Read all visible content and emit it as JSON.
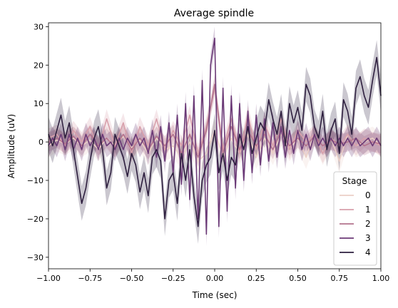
{
  "chart_data": {
    "type": "line",
    "title": "Average spindle",
    "xlabel": "Time (sec)",
    "ylabel": "Amplitude (uV)",
    "xlim": [
      -1.0,
      1.0
    ],
    "ylim": [
      -33,
      31
    ],
    "xticks": [
      -1.0,
      -0.75,
      -0.5,
      -0.25,
      0.0,
      0.25,
      0.5,
      0.75,
      1.0
    ],
    "xtick_labels": [
      "−1.00",
      "−0.75",
      "−0.50",
      "−0.25",
      "0.00",
      "0.25",
      "0.50",
      "0.75",
      "1.00"
    ],
    "yticks": [
      -30,
      -20,
      -10,
      0,
      10,
      20,
      30
    ],
    "ytick_labels": [
      "−30",
      "−20",
      "−10",
      "0",
      "10",
      "20",
      "30"
    ],
    "grid": false,
    "legend": {
      "title": "Stage",
      "position": "lower-right"
    },
    "band_note_hidden": true,
    "series": [
      {
        "name": "0",
        "color": "#ebcfc6",
        "band": 3.0,
        "x": [
          -1.0,
          -0.95,
          -0.9,
          -0.85,
          -0.8,
          -0.75,
          -0.7,
          -0.65,
          -0.6,
          -0.55,
          -0.5,
          -0.45,
          -0.4,
          -0.35,
          -0.3,
          -0.25,
          -0.2,
          -0.15,
          -0.1,
          -0.05,
          0.0,
          0.05,
          0.1,
          0.15,
          0.2,
          0.25,
          0.3,
          0.35,
          0.4,
          0.45,
          0.5,
          0.55,
          0.6,
          0.65,
          0.7,
          0.75,
          0.8,
          0.85,
          0.9,
          0.95,
          1.0
        ],
        "y": [
          -1,
          0.5,
          -0.5,
          1,
          -1,
          0.5,
          -2,
          1,
          -1,
          1.5,
          -1.5,
          0.5,
          -3,
          1,
          -2,
          -1,
          -4,
          0,
          -5,
          -3,
          3,
          -4,
          1,
          -3,
          2,
          -4,
          1,
          -3,
          2,
          -2,
          1,
          -4,
          2,
          -3,
          1,
          -5,
          2,
          -1,
          0,
          1,
          -1
        ]
      },
      {
        "name": "1",
        "color": "#d8a0ab",
        "band": 2.5,
        "x": [
          -1.0,
          -0.95,
          -0.9,
          -0.85,
          -0.8,
          -0.75,
          -0.7,
          -0.65,
          -0.6,
          -0.55,
          -0.5,
          -0.45,
          -0.4,
          -0.35,
          -0.3,
          -0.25,
          -0.2,
          -0.15,
          -0.1,
          -0.05,
          0.0,
          0.05,
          0.1,
          0.15,
          0.2,
          0.25,
          0.3,
          0.35,
          0.4,
          0.45,
          0.5,
          0.55,
          0.6,
          0.65,
          0.7,
          0.75,
          0.8,
          0.85,
          0.9,
          0.95,
          1.0
        ],
        "y": [
          1,
          2,
          -1,
          3,
          0,
          4,
          -2,
          6,
          -1,
          5,
          -3,
          4,
          -1,
          6,
          -2,
          3,
          -1,
          7,
          -3,
          4,
          14,
          -2,
          6,
          -3,
          7,
          -2,
          5,
          -1,
          6,
          -2,
          3,
          0,
          2,
          -3,
          1,
          -1,
          2,
          -1,
          1,
          0,
          -1
        ]
      },
      {
        "name": "2",
        "color": "#b3738d",
        "band": 2.5,
        "x": [
          -1.0,
          -0.95,
          -0.9,
          -0.85,
          -0.8,
          -0.75,
          -0.7,
          -0.65,
          -0.6,
          -0.55,
          -0.5,
          -0.45,
          -0.4,
          -0.35,
          -0.3,
          -0.25,
          -0.2,
          -0.15,
          -0.1,
          -0.05,
          0.0,
          0.05,
          0.1,
          0.15,
          0.2,
          0.25,
          0.3,
          0.35,
          0.4,
          0.45,
          0.5,
          0.55,
          0.6,
          0.65,
          0.7,
          0.75,
          0.8,
          0.85,
          0.9,
          0.95,
          1.0
        ],
        "y": [
          0,
          1,
          -0.5,
          1.5,
          -1,
          2,
          -1,
          1,
          -1.5,
          2,
          -2,
          1,
          -2,
          1.5,
          -1,
          2,
          -3,
          2,
          -4,
          3,
          15,
          -3,
          4,
          -2,
          3,
          -1,
          2,
          -2,
          3,
          -1,
          1,
          -1,
          1.5,
          -1,
          0.5,
          -0.5,
          0,
          1,
          -1,
          0,
          -0.5
        ]
      },
      {
        "name": "3",
        "color": "#6b3a77",
        "band": 3.0,
        "x": [
          -1.0,
          -0.975,
          -0.95,
          -0.925,
          -0.9,
          -0.875,
          -0.85,
          -0.825,
          -0.8,
          -0.775,
          -0.75,
          -0.725,
          -0.7,
          -0.675,
          -0.65,
          -0.625,
          -0.6,
          -0.575,
          -0.55,
          -0.525,
          -0.5,
          -0.475,
          -0.45,
          -0.425,
          -0.4,
          -0.375,
          -0.35,
          -0.325,
          -0.3,
          -0.275,
          -0.25,
          -0.225,
          -0.2,
          -0.175,
          -0.15,
          -0.125,
          -0.1,
          -0.075,
          -0.05,
          -0.025,
          0.0,
          0.025,
          0.05,
          0.075,
          0.1,
          0.125,
          0.15,
          0.175,
          0.2,
          0.225,
          0.25,
          0.275,
          0.3,
          0.325,
          0.35,
          0.375,
          0.4,
          0.425,
          0.45,
          0.475,
          0.5,
          0.525,
          0.55,
          0.575,
          0.6,
          0.625,
          0.65,
          0.675,
          0.7,
          0.725,
          0.75,
          0.775,
          0.8,
          0.825,
          0.85,
          0.875,
          0.9,
          0.925,
          0.95,
          0.975,
          1.0
        ],
        "y": [
          -1,
          1,
          -1,
          2,
          -2,
          2,
          -2,
          1,
          -2,
          2,
          -1,
          1,
          -2,
          2,
          -1,
          0,
          -2,
          1,
          -2,
          1,
          -1,
          2,
          -1,
          1,
          -3,
          3,
          -4,
          4,
          -5,
          5,
          -8,
          7,
          -11,
          10,
          -15,
          12,
          -20,
          16,
          -24,
          20,
          27,
          -22,
          14,
          -18,
          12,
          -12,
          10,
          -10,
          8,
          -8,
          7,
          -6,
          6,
          -5,
          5,
          -4,
          4,
          -4,
          3,
          -3,
          3,
          -2,
          2,
          -2,
          2,
          -1,
          1,
          -1,
          1,
          -1,
          1,
          -1,
          1,
          -1,
          1,
          -1,
          0,
          1,
          -1,
          1,
          -1
        ]
      },
      {
        "name": "4",
        "color": "#2d1e3e",
        "band": 4.5,
        "x": [
          -1.0,
          -0.975,
          -0.95,
          -0.925,
          -0.9,
          -0.875,
          -0.85,
          -0.825,
          -0.8,
          -0.775,
          -0.75,
          -0.725,
          -0.7,
          -0.675,
          -0.65,
          -0.625,
          -0.6,
          -0.575,
          -0.55,
          -0.525,
          -0.5,
          -0.475,
          -0.45,
          -0.425,
          -0.4,
          -0.375,
          -0.35,
          -0.325,
          -0.3,
          -0.275,
          -0.25,
          -0.225,
          -0.2,
          -0.175,
          -0.15,
          -0.125,
          -0.1,
          -0.075,
          -0.05,
          -0.025,
          0.0,
          0.025,
          0.05,
          0.075,
          0.1,
          0.125,
          0.15,
          0.175,
          0.2,
          0.225,
          0.25,
          0.275,
          0.3,
          0.325,
          0.35,
          0.375,
          0.4,
          0.425,
          0.45,
          0.475,
          0.5,
          0.525,
          0.55,
          0.575,
          0.6,
          0.625,
          0.65,
          0.675,
          0.7,
          0.725,
          0.75,
          0.775,
          0.8,
          0.825,
          0.85,
          0.875,
          0.9,
          0.925,
          0.95,
          0.975,
          1.0
        ],
        "y": [
          2,
          -1,
          3,
          7,
          1,
          5,
          -2,
          -9,
          -16,
          -12,
          -5,
          1,
          4,
          -2,
          -12,
          -8,
          2,
          -1,
          -4,
          -9,
          -3,
          -6,
          -13,
          -8,
          -14,
          -4,
          -2,
          -5,
          -20,
          -10,
          -8,
          -16,
          -3,
          -10,
          -2,
          -14,
          -22,
          -10,
          -6,
          -4,
          3,
          -8,
          -3,
          -10,
          -4,
          -6,
          2,
          -2,
          4,
          -3,
          1,
          5,
          3,
          11,
          6,
          2,
          8,
          -1,
          10,
          5,
          9,
          3,
          15,
          12,
          4,
          1,
          8,
          -2,
          3,
          6,
          -3,
          11,
          8,
          2,
          14,
          17,
          12,
          9,
          16,
          22,
          12
        ]
      }
    ]
  }
}
